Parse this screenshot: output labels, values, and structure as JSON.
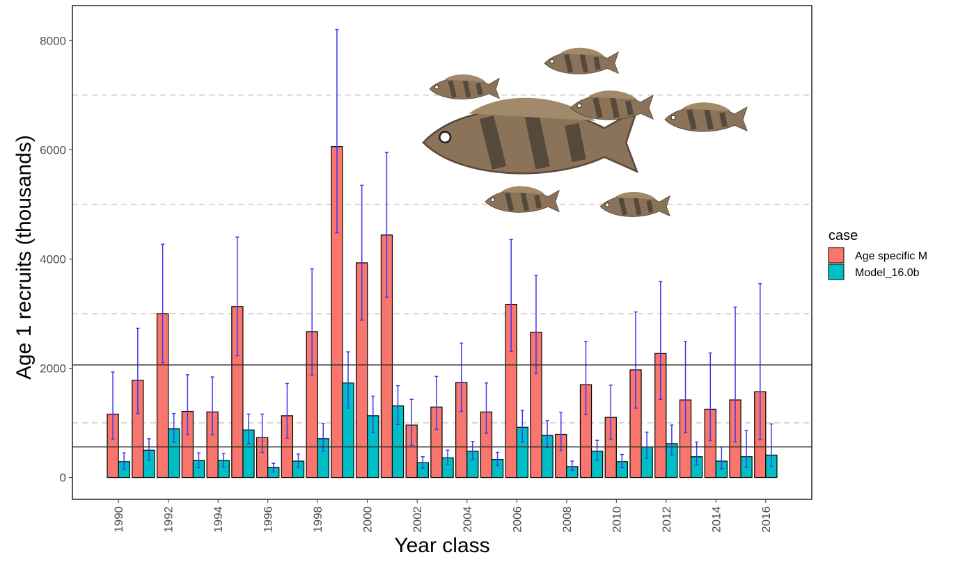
{
  "chart_data": {
    "type": "bar",
    "x_label": "Year class",
    "y_label": "Age 1 recruits (thousands)",
    "legend_title": "case",
    "legend_position": "right",
    "x": [
      1990,
      1991,
      1992,
      1993,
      1994,
      1995,
      1996,
      1997,
      1998,
      1999,
      2000,
      2001,
      2002,
      2003,
      2004,
      2005,
      2006,
      2007,
      2008,
      2009,
      2010,
      2011,
      2012,
      2013,
      2014,
      2015,
      2016
    ],
    "xlim": [
      1988.15,
      2017.85
    ],
    "xticks": [
      1990,
      1992,
      1994,
      1996,
      1998,
      2000,
      2002,
      2004,
      2006,
      2008,
      2010,
      2012,
      2014,
      2016
    ],
    "ylim": [
      -400,
      8640
    ],
    "yticks": [
      0,
      2000,
      4000,
      6000,
      8000
    ],
    "minor_grid": [
      1000,
      3000,
      5000,
      7000
    ],
    "hlines": [
      2060,
      560
    ],
    "error_color": "#3a3af0",
    "series": [
      {
        "name": "Age specific M",
        "color": "#F8766D",
        "values": [
          1160,
          1780,
          3000,
          1210,
          1200,
          3130,
          730,
          1130,
          2670,
          6060,
          3930,
          4440,
          960,
          1290,
          1740,
          1200,
          3170,
          2660,
          790,
          1700,
          1100,
          1970,
          2270,
          1420,
          1250,
          1420,
          1570
        ],
        "lower": [
          700,
          1170,
          2100,
          780,
          780,
          2230,
          460,
          720,
          1870,
          4480,
          2880,
          3300,
          590,
          880,
          1210,
          810,
          2310,
          1900,
          490,
          1150,
          700,
          1270,
          1430,
          820,
          680,
          650,
          690
        ],
        "upper": [
          1930,
          2730,
          4270,
          1880,
          1840,
          4400,
          1160,
          1720,
          3820,
          8200,
          5350,
          5950,
          1430,
          1850,
          2460,
          1730,
          4360,
          3700,
          1190,
          2490,
          1690,
          3030,
          3590,
          2490,
          2280,
          3120,
          3550
        ]
      },
      {
        "name": "Model_16.0b",
        "color": "#00BFC4",
        "values": [
          290,
          500,
          890,
          310,
          310,
          870,
          180,
          300,
          710,
          1730,
          1130,
          1310,
          270,
          360,
          480,
          330,
          920,
          770,
          200,
          480,
          290,
          560,
          620,
          380,
          300,
          380,
          410
        ],
        "lower": [
          150,
          320,
          650,
          180,
          190,
          620,
          100,
          190,
          480,
          1270,
          820,
          970,
          170,
          240,
          330,
          220,
          650,
          550,
          130,
          320,
          180,
          350,
          400,
          230,
          160,
          190,
          200
        ],
        "upper": [
          450,
          710,
          1170,
          450,
          440,
          1160,
          260,
          430,
          990,
          2300,
          1490,
          1680,
          380,
          500,
          660,
          460,
          1230,
          1040,
          300,
          680,
          420,
          830,
          960,
          650,
          560,
          860,
          980
        ]
      }
    ]
  }
}
